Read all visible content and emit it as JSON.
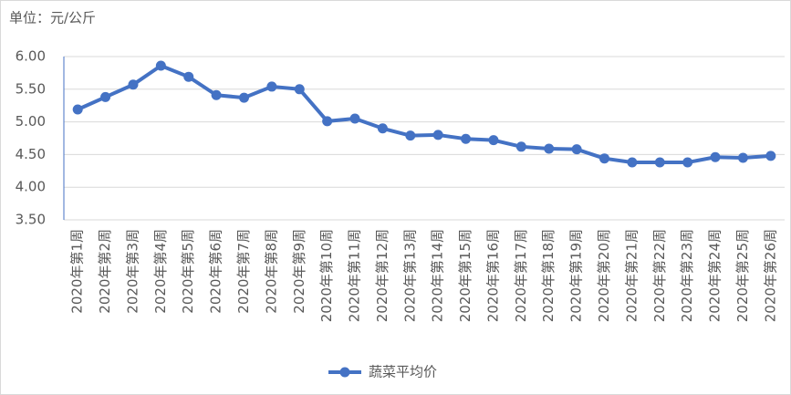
{
  "chart_data": {
    "type": "line",
    "unit_label": "单位：元/公斤",
    "categories": [
      "2020年第1周",
      "2020年第2周",
      "2020年第3周",
      "2020年第4周",
      "2020年第5周",
      "2020年第6周",
      "2020年第7周",
      "2020年第8周",
      "2020年第9周",
      "2020年第10周",
      "2020年第11周",
      "2020年第12周",
      "2020年第13周",
      "2020年第14周",
      "2020年第15周",
      "2020年第16周",
      "2020年第17周",
      "2020年第18周",
      "2020年第19周",
      "2020年第20周",
      "2020年第21周",
      "2020年第22周",
      "2020年第23周",
      "2020年第24周",
      "2020年第25周",
      "2020年第26周"
    ],
    "series": [
      {
        "name": "蔬菜平均价",
        "color": "#4472c4",
        "values": [
          5.19,
          5.38,
          5.57,
          5.86,
          5.69,
          5.41,
          5.37,
          5.54,
          5.5,
          5.01,
          5.05,
          4.9,
          4.79,
          4.8,
          4.74,
          4.72,
          4.62,
          4.59,
          4.58,
          4.44,
          4.38,
          4.38,
          4.38,
          4.46,
          4.45,
          4.48
        ]
      }
    ],
    "ylim": [
      3.5,
      6.0
    ],
    "yticks": [
      {
        "value": 3.5,
        "label": "3.50"
      },
      {
        "value": 4.0,
        "label": "4.00"
      },
      {
        "value": 4.5,
        "label": "4.50"
      },
      {
        "value": 5.0,
        "label": "5.00"
      },
      {
        "value": 5.5,
        "label": "5.50"
      },
      {
        "value": 6.0,
        "label": "6.00"
      }
    ],
    "grid": true,
    "legend": "bottom"
  }
}
